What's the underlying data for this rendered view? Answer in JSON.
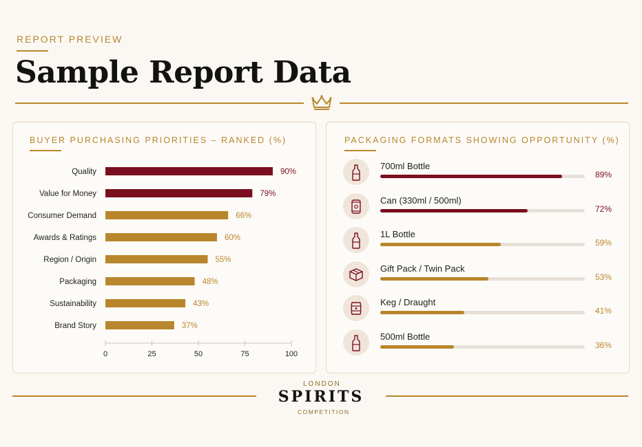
{
  "header": {
    "eyebrow": "REPORT PREVIEW",
    "title": "Sample Report Data"
  },
  "colors": {
    "gold": "#b8862c",
    "burgundy": "#7a0f1f",
    "background": "#fbf8f3",
    "track": "#e6e0d9"
  },
  "icons": [
    "crown-icon",
    "bottle-icon",
    "can-icon",
    "gift-box-icon",
    "keg-icon"
  ],
  "chart_data": [
    {
      "type": "bar",
      "orientation": "horizontal",
      "title": "BUYER PURCHASING PRIORITIES – RANKED (%)",
      "categories": [
        "Quality",
        "Value for Money",
        "Consumer Demand",
        "Awards & Ratings",
        "Region / Origin",
        "Packaging",
        "Sustainability",
        "Brand Story"
      ],
      "values": [
        90,
        79,
        66,
        60,
        55,
        48,
        43,
        37
      ],
      "value_labels": [
        "90%",
        "79%",
        "66%",
        "60%",
        "55%",
        "48%",
        "43%",
        "37%"
      ],
      "highlight_count": 2,
      "xlim": [
        0,
        100
      ],
      "xticks": [
        "0",
        "25",
        "50",
        "75",
        "100"
      ],
      "grid": false,
      "legend": "none"
    },
    {
      "type": "bar",
      "orientation": "horizontal",
      "title": "PACKAGING FORMATS SHOWING OPPORTUNITY (%)",
      "categories": [
        "700ml Bottle",
        "Can (330ml / 500ml)",
        "1L Bottle",
        "Gift Pack / Twin Pack",
        "Keg / Draught",
        "500ml Bottle"
      ],
      "values": [
        89,
        72,
        59,
        53,
        41,
        36
      ],
      "value_labels": [
        "89%",
        "72%",
        "59%",
        "53%",
        "41%",
        "36%"
      ],
      "icons": [
        "bottle-icon",
        "can-icon",
        "bottle-icon",
        "gift-box-icon",
        "keg-icon",
        "bottle-icon"
      ],
      "highlight_count": 2,
      "xlim": [
        0,
        100
      ],
      "legend": "none"
    }
  ],
  "footer": {
    "logo_top": "LONDON",
    "logo_main": "SPIRITS",
    "logo_bottom": "COMPETITION"
  }
}
